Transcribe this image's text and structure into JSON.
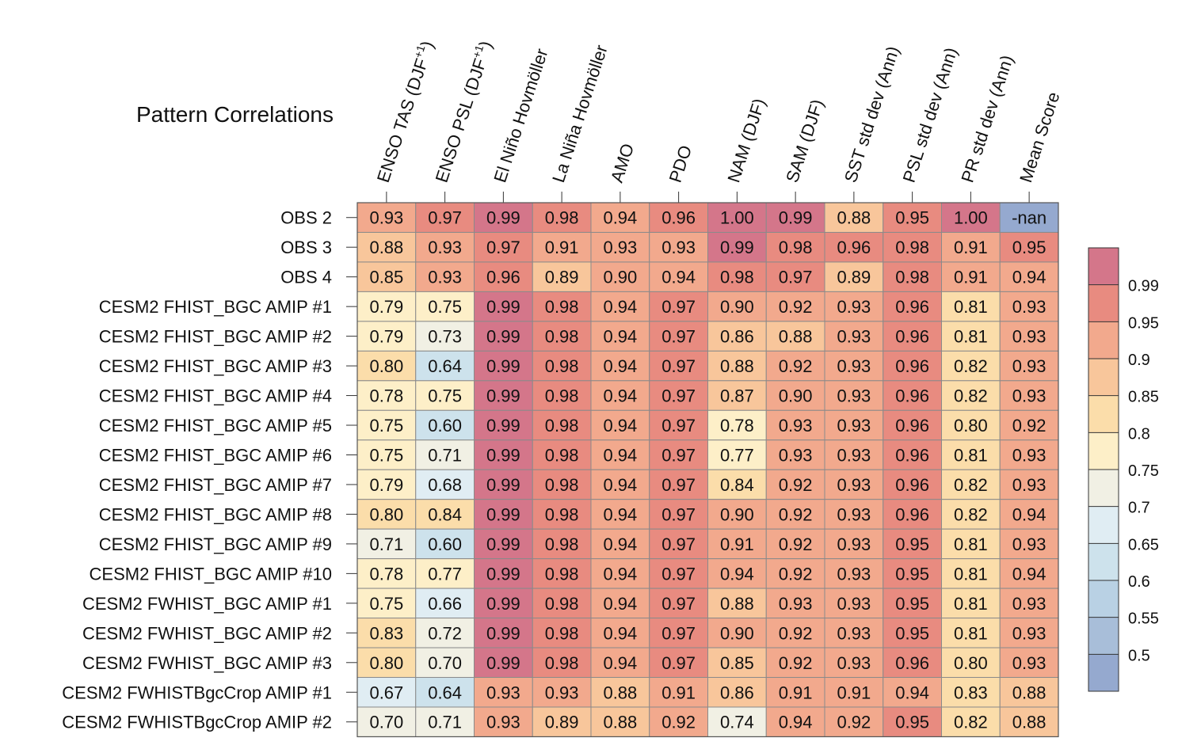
{
  "chart_data": {
    "type": "heatmap",
    "title": "Pattern Correlations",
    "columns": [
      {
        "main": "ENSO TAS (DJF",
        "sup": "+1",
        "tail": ")"
      },
      {
        "main": "ENSO PSL (DJF",
        "sup": "+1",
        "tail": ")"
      },
      {
        "main": "El Niño Hovmöller"
      },
      {
        "main": "La Niña Hovmöller"
      },
      {
        "main": "AMO"
      },
      {
        "main": "PDO"
      },
      {
        "main": "NAM (DJF)"
      },
      {
        "main": "SAM (DJF)"
      },
      {
        "main": "SST std dev (Ann)"
      },
      {
        "main": "PSL std dev (Ann)"
      },
      {
        "main": "PR std dev (Ann)"
      },
      {
        "main": "Mean Score"
      }
    ],
    "rows": [
      "OBS 2",
      "OBS 3",
      "OBS 4",
      "CESM2 FHIST_BGC AMIP #1",
      "CESM2 FHIST_BGC AMIP #2",
      "CESM2 FHIST_BGC AMIP #3",
      "CESM2 FHIST_BGC AMIP #4",
      "CESM2 FHIST_BGC AMIP #5",
      "CESM2 FHIST_BGC AMIP #6",
      "CESM2 FHIST_BGC AMIP #7",
      "CESM2 FHIST_BGC AMIP #8",
      "CESM2 FHIST_BGC AMIP #9",
      "CESM2 FHIST_BGC AMIP #10",
      "CESM2 FWHIST_BGC AMIP #1",
      "CESM2 FWHIST_BGC AMIP #2",
      "CESM2 FWHIST_BGC AMIP #3",
      "CESM2 FWHISTBgcCrop AMIP #1",
      "CESM2 FWHISTBgcCrop AMIP #2"
    ],
    "values": [
      [
        "0.93",
        "0.97",
        "0.99",
        "0.98",
        "0.94",
        "0.96",
        "1.00",
        "0.99",
        "0.88",
        "0.95",
        "1.00",
        "-nan"
      ],
      [
        "0.88",
        "0.93",
        "0.97",
        "0.91",
        "0.93",
        "0.93",
        "0.99",
        "0.98",
        "0.96",
        "0.98",
        "0.91",
        "0.95"
      ],
      [
        "0.85",
        "0.93",
        "0.96",
        "0.89",
        "0.90",
        "0.94",
        "0.98",
        "0.97",
        "0.89",
        "0.98",
        "0.91",
        "0.94"
      ],
      [
        "0.79",
        "0.75",
        "0.99",
        "0.98",
        "0.94",
        "0.97",
        "0.90",
        "0.92",
        "0.93",
        "0.96",
        "0.81",
        "0.93"
      ],
      [
        "0.79",
        "0.73",
        "0.99",
        "0.98",
        "0.94",
        "0.97",
        "0.86",
        "0.88",
        "0.93",
        "0.96",
        "0.81",
        "0.93"
      ],
      [
        "0.80",
        "0.64",
        "0.99",
        "0.98",
        "0.94",
        "0.97",
        "0.88",
        "0.92",
        "0.93",
        "0.96",
        "0.82",
        "0.93"
      ],
      [
        "0.78",
        "0.75",
        "0.99",
        "0.98",
        "0.94",
        "0.97",
        "0.87",
        "0.90",
        "0.93",
        "0.96",
        "0.82",
        "0.93"
      ],
      [
        "0.75",
        "0.60",
        "0.99",
        "0.98",
        "0.94",
        "0.97",
        "0.78",
        "0.93",
        "0.93",
        "0.96",
        "0.80",
        "0.92"
      ],
      [
        "0.75",
        "0.71",
        "0.99",
        "0.98",
        "0.94",
        "0.97",
        "0.77",
        "0.93",
        "0.93",
        "0.96",
        "0.81",
        "0.93"
      ],
      [
        "0.79",
        "0.68",
        "0.99",
        "0.98",
        "0.94",
        "0.97",
        "0.84",
        "0.92",
        "0.93",
        "0.96",
        "0.82",
        "0.93"
      ],
      [
        "0.80",
        "0.84",
        "0.99",
        "0.98",
        "0.94",
        "0.97",
        "0.90",
        "0.92",
        "0.93",
        "0.96",
        "0.82",
        "0.94"
      ],
      [
        "0.71",
        "0.60",
        "0.99",
        "0.98",
        "0.94",
        "0.97",
        "0.91",
        "0.92",
        "0.93",
        "0.95",
        "0.81",
        "0.93"
      ],
      [
        "0.78",
        "0.77",
        "0.99",
        "0.98",
        "0.94",
        "0.97",
        "0.94",
        "0.92",
        "0.93",
        "0.95",
        "0.81",
        "0.94"
      ],
      [
        "0.75",
        "0.66",
        "0.99",
        "0.98",
        "0.94",
        "0.97",
        "0.88",
        "0.93",
        "0.93",
        "0.95",
        "0.81",
        "0.93"
      ],
      [
        "0.83",
        "0.72",
        "0.99",
        "0.98",
        "0.94",
        "0.97",
        "0.90",
        "0.92",
        "0.93",
        "0.95",
        "0.81",
        "0.93"
      ],
      [
        "0.80",
        "0.70",
        "0.99",
        "0.98",
        "0.94",
        "0.97",
        "0.85",
        "0.92",
        "0.93",
        "0.96",
        "0.80",
        "0.93"
      ],
      [
        "0.67",
        "0.64",
        "0.93",
        "0.93",
        "0.88",
        "0.91",
        "0.86",
        "0.91",
        "0.91",
        "0.94",
        "0.83",
        "0.88"
      ],
      [
        "0.70",
        "0.71",
        "0.93",
        "0.89",
        "0.88",
        "0.92",
        "0.74",
        "0.94",
        "0.92",
        "0.95",
        "0.82",
        "0.88"
      ]
    ],
    "colorbar": {
      "levels": [
        0.5,
        0.55,
        0.6,
        0.65,
        0.7,
        0.75,
        0.8,
        0.85,
        0.9,
        0.95,
        0.99
      ],
      "tick_labels": [
        "0.5",
        "0.55",
        "0.6",
        "0.65",
        "0.7",
        "0.75",
        "0.8",
        "0.85",
        "0.9",
        "0.95",
        "0.99"
      ],
      "colors": [
        "#95a9cf",
        "#a8bed9",
        "#b9d1e4",
        "#cde2ec",
        "#e0edf3",
        "#f1f0e4",
        "#fdefc8",
        "#fbddaa",
        "#f8c69b",
        "#f2a98d",
        "#e88b80",
        "#d4768a"
      ],
      "placement": "right"
    }
  },
  "colors": {
    "cell_border": "#8a8a8a",
    "text": "#111111"
  }
}
